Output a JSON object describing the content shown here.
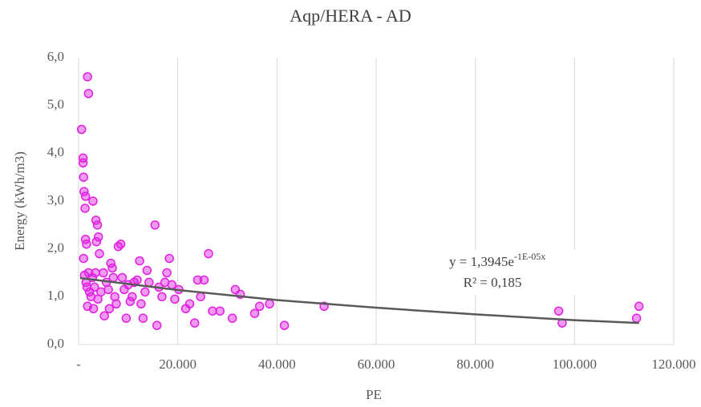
{
  "chart_data": {
    "type": "scatter",
    "title": "Aqp/HERA - AD",
    "x_label": "PE",
    "y_label": "Energy (kWh/m3)",
    "xlim": [
      0,
      120000
    ],
    "ylim": [
      0,
      6
    ],
    "xticks": [
      {
        "value": 0,
        "label": "-"
      },
      {
        "value": 20000,
        "label": "20.000"
      },
      {
        "value": 40000,
        "label": "40.000"
      },
      {
        "value": 60000,
        "label": "60.000"
      },
      {
        "value": 80000,
        "label": "80.000"
      },
      {
        "value": 100000,
        "label": "100.000"
      },
      {
        "value": 120000,
        "label": "120.000"
      }
    ],
    "yticks": [
      {
        "value": 0,
        "label": "0,0"
      },
      {
        "value": 1,
        "label": "1,0"
      },
      {
        "value": 2,
        "label": "2,0"
      },
      {
        "value": 3,
        "label": "3,0"
      },
      {
        "value": 4,
        "label": "4,0"
      },
      {
        "value": 5,
        "label": "5,0"
      },
      {
        "value": 6,
        "label": "6,0"
      }
    ],
    "grid": true,
    "color": "#e020e0",
    "x": [
      600,
      900,
      900,
      1000,
      1100,
      1400,
      1300,
      2900,
      1400,
      1600,
      1000,
      1800,
      2000,
      3500,
      3800,
      3600,
      4000,
      4200,
      1200,
      1500,
      1700,
      2000,
      2200,
      1800,
      2500,
      2800,
      3000,
      3200,
      3400,
      3900,
      4500,
      5000,
      5200,
      5600,
      6000,
      6200,
      6500,
      6800,
      7000,
      7300,
      7600,
      8000,
      8500,
      8800,
      9200,
      9600,
      10000,
      10400,
      10800,
      11200,
      11800,
      12300,
      12600,
      13000,
      13400,
      13800,
      14200,
      15400,
      15800,
      16200,
      16800,
      17400,
      17800,
      18300,
      18800,
      19400,
      20200,
      21600,
      22400,
      23400,
      24000,
      24600,
      25300,
      26200,
      27000,
      28500,
      31000,
      31600,
      32600,
      35500,
      36500,
      38500,
      41500,
      49500,
      96800,
      97500,
      112500,
      113000
    ],
    "values": [
      4.5,
      3.9,
      3.8,
      3.5,
      3.2,
      3.1,
      2.85,
      3.0,
      2.2,
      2.1,
      1.8,
      5.6,
      5.25,
      2.6,
      2.5,
      2.15,
      2.25,
      1.9,
      1.45,
      1.3,
      1.2,
      1.5,
      1.1,
      0.8,
      1.0,
      1.4,
      0.75,
      1.2,
      1.5,
      0.95,
      1.1,
      1.5,
      0.6,
      1.3,
      1.15,
      0.75,
      1.7,
      1.6,
      1.4,
      1.0,
      0.85,
      2.05,
      2.1,
      1.4,
      1.15,
      0.55,
      1.25,
      0.9,
      1.0,
      1.3,
      1.35,
      1.75,
      0.85,
      0.55,
      1.1,
      1.55,
      1.3,
      2.5,
      0.4,
      1.2,
      1.0,
      1.3,
      1.5,
      1.8,
      1.25,
      0.95,
      1.15,
      0.75,
      0.85,
      0.45,
      1.35,
      1.0,
      1.35,
      1.9,
      0.7,
      0.7,
      0.55,
      1.15,
      1.05,
      0.65,
      0.8,
      0.85,
      0.4,
      0.8,
      0.7,
      0.45,
      0.55,
      0.8
    ],
    "trendline": {
      "color": "#595959",
      "x": [
        300,
        20000,
        40000,
        60000,
        80000,
        100000,
        113000
      ],
      "values": [
        1.39,
        1.14,
        0.93,
        0.77,
        0.63,
        0.51,
        0.45
      ]
    },
    "annotations": [
      "y = 1,3945e",
      "-1E-05x",
      "R² = 0,185"
    ]
  }
}
